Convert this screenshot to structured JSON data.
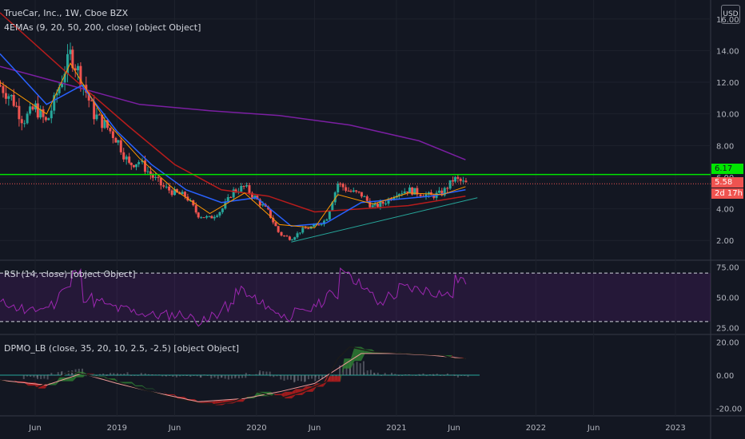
{
  "header": {
    "symbol_line": "TrueCar, Inc., 1W, Cboe BZX",
    "ema_line": "4EMAs (9, 20, 50, 200, close) [object Object]",
    "rsi_line": "RSI (14, close) [object Object]",
    "dpmo_line": "DPMO_LB (close, 35, 20, 10, 2.5, -2.5) [object Object]",
    "currency": "USD"
  },
  "price_tags": {
    "resistance": "6.17",
    "last": "5.58",
    "countdown": "2d 17h"
  },
  "colors": {
    "bg": "#131722",
    "up": "#26a69a",
    "down": "#ef5350",
    "resistance": "#00e600",
    "ema9": "#ff9800",
    "ema20": "#2962ff",
    "ema50": "#b71c1c",
    "ema200": "#7b1fa2",
    "trend": "#26a69a",
    "rsi": "#9c27b0"
  },
  "chart_data": [
    {
      "type": "candlestick",
      "pane": "price",
      "ylim": [
        0.8,
        17.2
      ],
      "yticks": [
        "16.00",
        "14.00",
        "12.00",
        "10.00",
        "8.00",
        "6.00",
        "4.00",
        "2.00"
      ],
      "xticks": [
        "Jun",
        "2019",
        "Jun",
        "2020",
        "Jun",
        "2021",
        "Jun",
        "2022",
        "Jun",
        "2023"
      ],
      "x_tick_dates": [
        "2018-06",
        "2019-01",
        "2019-06",
        "2020-01",
        "2020-06",
        "2021-01",
        "2021-06",
        "2022-01",
        "2022-06",
        "2023-01"
      ],
      "close_path": [
        [
          "2018-03",
          11.8
        ],
        [
          "2018-04",
          11.0
        ],
        [
          "2018-05",
          9.6
        ],
        [
          "2018-06",
          10.4
        ],
        [
          "2018-07",
          9.4
        ],
        [
          "2018-08",
          11.6
        ],
        [
          "2018-09",
          13.8
        ],
        [
          "2018-10",
          12.2
        ],
        [
          "2018-11",
          10.0
        ],
        [
          "2018-12",
          9.3
        ],
        [
          "2019-01",
          8.4
        ],
        [
          "2019-02",
          6.8
        ],
        [
          "2019-03",
          7.0
        ],
        [
          "2019-04",
          6.1
        ],
        [
          "2019-05",
          5.4
        ],
        [
          "2019-06",
          5.0
        ],
        [
          "2019-07",
          4.8
        ],
        [
          "2019-08",
          3.6
        ],
        [
          "2019-09",
          3.4
        ],
        [
          "2019-10",
          3.9
        ],
        [
          "2019-11",
          5.1
        ],
        [
          "2019-12",
          5.4
        ],
        [
          "2020-01",
          4.6
        ],
        [
          "2020-02",
          3.8
        ],
        [
          "2020-03",
          2.4
        ],
        [
          "2020-04",
          2.1
        ],
        [
          "2020-05",
          2.7
        ],
        [
          "2020-06",
          2.9
        ],
        [
          "2020-07",
          3.3
        ],
        [
          "2020-08",
          5.6
        ],
        [
          "2020-09",
          5.1
        ],
        [
          "2020-10",
          4.9
        ],
        [
          "2020-11",
          4.1
        ],
        [
          "2020-12",
          4.4
        ],
        [
          "2021-01",
          5.0
        ],
        [
          "2021-02",
          5.2
        ],
        [
          "2021-03",
          5.0
        ],
        [
          "2021-04",
          4.8
        ],
        [
          "2021-05",
          5.0
        ],
        [
          "2021-06",
          5.9
        ],
        [
          "2021-07",
          5.58
        ]
      ],
      "ema9": [
        [
          "2018-03",
          12.0
        ],
        [
          "2018-07",
          10.0
        ],
        [
          "2018-09",
          13.2
        ],
        [
          "2018-12",
          9.6
        ],
        [
          "2019-03",
          7.2
        ],
        [
          "2019-06",
          5.2
        ],
        [
          "2019-09",
          3.7
        ],
        [
          "2019-12",
          5.0
        ],
        [
          "2020-03",
          3.0
        ],
        [
          "2020-06",
          2.8
        ],
        [
          "2020-08",
          4.9
        ],
        [
          "2020-11",
          4.3
        ],
        [
          "2021-02",
          5.0
        ],
        [
          "2021-05",
          4.9
        ],
        [
          "2021-07",
          5.4
        ]
      ],
      "ema20": [
        [
          "2018-03",
          13.8
        ],
        [
          "2018-07",
          10.6
        ],
        [
          "2018-10",
          11.8
        ],
        [
          "2019-01",
          8.9
        ],
        [
          "2019-04",
          6.8
        ],
        [
          "2019-07",
          5.2
        ],
        [
          "2019-10",
          4.4
        ],
        [
          "2020-01",
          4.7
        ],
        [
          "2020-04",
          2.9
        ],
        [
          "2020-07",
          3.1
        ],
        [
          "2020-10",
          4.4
        ],
        [
          "2021-01",
          4.6
        ],
        [
          "2021-04",
          4.8
        ],
        [
          "2021-07",
          5.2
        ]
      ],
      "ema50": [
        [
          "2018-03",
          16.4
        ],
        [
          "2018-09",
          12.4
        ],
        [
          "2019-02",
          9.2
        ],
        [
          "2019-06",
          6.8
        ],
        [
          "2019-10",
          5.2
        ],
        [
          "2020-02",
          4.8
        ],
        [
          "2020-06",
          3.8
        ],
        [
          "2020-10",
          4.0
        ],
        [
          "2021-02",
          4.2
        ],
        [
          "2021-07",
          4.8
        ]
      ],
      "ema200": [
        [
          "2018-03",
          13.0
        ],
        [
          "2018-09",
          11.8
        ],
        [
          "2019-03",
          10.6
        ],
        [
          "2019-09",
          10.2
        ],
        [
          "2020-03",
          9.9
        ],
        [
          "2020-09",
          9.3
        ],
        [
          "2021-03",
          8.3
        ],
        [
          "2021-07",
          7.1
        ]
      ],
      "resistance_level": 6.17,
      "last_price": 5.58,
      "trendline": [
        [
          "2020-04",
          1.9
        ],
        [
          "2021-08",
          4.7
        ]
      ]
    },
    {
      "type": "line",
      "pane": "rsi",
      "ylim": [
        20,
        80
      ],
      "yticks": [
        "75.00",
        "50.00",
        "25.00"
      ],
      "bands": [
        70,
        30
      ],
      "values": [
        [
          "2018-03",
          45
        ],
        [
          "2018-05",
          38
        ],
        [
          "2018-07",
          44
        ],
        [
          "2018-08",
          58
        ],
        [
          "2018-09",
          70
        ],
        [
          "2018-10",
          50
        ],
        [
          "2018-12",
          42
        ],
        [
          "2019-02",
          38
        ],
        [
          "2019-04",
          35
        ],
        [
          "2019-06",
          36
        ],
        [
          "2019-08",
          30
        ],
        [
          "2019-10",
          42
        ],
        [
          "2019-11",
          56
        ],
        [
          "2020-01",
          44
        ],
        [
          "2020-03",
          34
        ],
        [
          "2020-05",
          40
        ],
        [
          "2020-07",
          52
        ],
        [
          "2020-08",
          74
        ],
        [
          "2020-10",
          55
        ],
        [
          "2020-11",
          45
        ],
        [
          "2021-01",
          58
        ],
        [
          "2021-03",
          56
        ],
        [
          "2021-05",
          52
        ],
        [
          "2021-06",
          65
        ],
        [
          "2021-07",
          57
        ]
      ]
    },
    {
      "type": "line",
      "pane": "dpmo",
      "ylim": [
        -24,
        24
      ],
      "yticks": [
        "20.00",
        "0.00",
        "-20.00"
      ],
      "zero_line": 0,
      "fast": [
        [
          "2018-03",
          -3
        ],
        [
          "2018-06",
          -8
        ],
        [
          "2018-09",
          2
        ],
        [
          "2018-12",
          -2
        ],
        [
          "2019-03",
          -8
        ],
        [
          "2019-06",
          -14
        ],
        [
          "2019-09",
          -18
        ],
        [
          "2019-11",
          -16
        ],
        [
          "2020-01",
          -10
        ],
        [
          "2020-03",
          -14
        ],
        [
          "2020-05",
          -10
        ],
        [
          "2020-07",
          -4
        ],
        [
          "2020-08",
          10
        ],
        [
          "2020-09",
          17
        ],
        [
          "2020-11",
          14
        ],
        [
          "2021-02",
          13
        ],
        [
          "2021-05",
          12
        ],
        [
          "2021-06",
          10
        ],
        [
          "2021-07",
          10
        ]
      ],
      "slow": [
        [
          "2018-03",
          -3
        ],
        [
          "2018-07",
          -6
        ],
        [
          "2018-10",
          1
        ],
        [
          "2019-01",
          -5
        ],
        [
          "2019-04",
          -10
        ],
        [
          "2019-08",
          -16
        ],
        [
          "2019-12",
          -14
        ],
        [
          "2020-03",
          -10
        ],
        [
          "2020-06",
          -5
        ],
        [
          "2020-08",
          4
        ],
        [
          "2020-10",
          13
        ],
        [
          "2021-01",
          13
        ],
        [
          "2021-04",
          12
        ],
        [
          "2021-07",
          10
        ]
      ]
    }
  ]
}
